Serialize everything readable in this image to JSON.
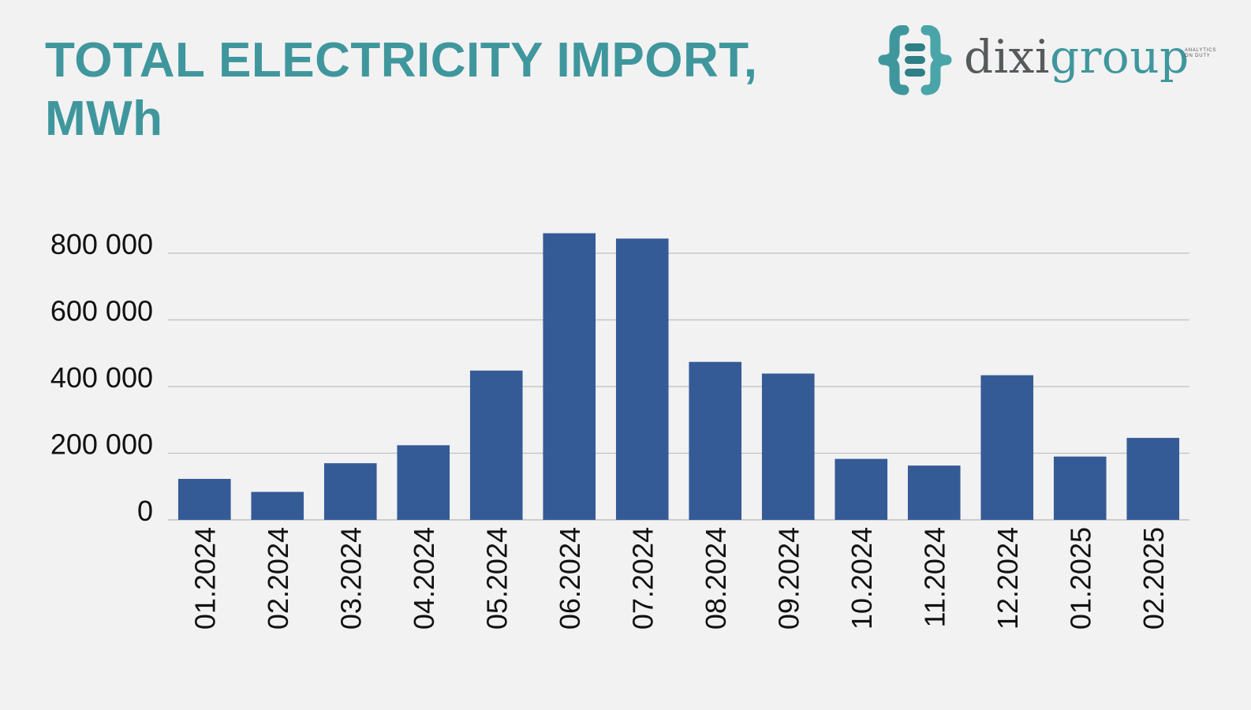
{
  "title": {
    "line1": "TOTAL ELECTRICITY IMPORT,",
    "line2": "MWh"
  },
  "logo": {
    "icon": "dixigroup-brackets-icon",
    "word_dixi": "dixi",
    "word_group": "group",
    "tagline_1": "ANALYTICS",
    "tagline_2": "ON DUTY"
  },
  "colors": {
    "title": "#3f979d",
    "bar": "#355b97",
    "grid": "#c0c0c0",
    "background": "#f2f2f2"
  },
  "chart_data": {
    "type": "bar",
    "title": "TOTAL ELECTRICITY IMPORT, MWh",
    "xlabel": "",
    "ylabel": "",
    "ylim": [
      0,
      800000
    ],
    "yticks": [
      0,
      200000,
      400000,
      600000,
      800000
    ],
    "ytick_labels": [
      "0",
      "200 000",
      "400 000",
      "600 000",
      "800 000"
    ],
    "grid": true,
    "legend": "none",
    "categories": [
      "01.2024",
      "02.2024",
      "03.2024",
      "04.2024",
      "05.2024",
      "06.2024",
      "07.2024",
      "08.2024",
      "09.2024",
      "10.2024",
      "11.2024",
      "12.2024",
      "01.2025",
      "02.2025"
    ],
    "values": [
      123000,
      84000,
      170000,
      224000,
      448000,
      860000,
      844000,
      474000,
      439000,
      183000,
      163000,
      434000,
      190000,
      246000
    ]
  }
}
